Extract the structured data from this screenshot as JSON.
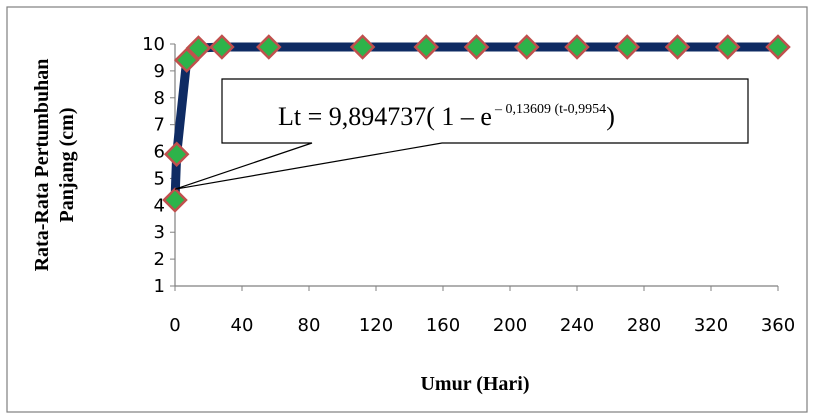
{
  "chart_data": {
    "type": "line",
    "xlabel": "Umur (Hari)",
    "ylabel_lines": [
      "Rata-Rata Pertumbuhan",
      "Panjang (cm)"
    ],
    "xlim": [
      0,
      360
    ],
    "ylim": [
      1,
      10
    ],
    "x_ticks": [
      0,
      40,
      80,
      120,
      160,
      200,
      240,
      280,
      320,
      360
    ],
    "y_ticks": [
      1,
      2,
      3,
      4,
      5,
      6,
      7,
      8,
      9,
      10
    ],
    "grid": false,
    "line_color": "#0f2b63",
    "marker_fill": "#2db34a",
    "marker_stroke": "#c0504d",
    "series": [
      {
        "x": [
          0,
          1,
          7,
          14,
          28,
          56,
          112,
          150,
          180,
          210,
          240,
          270,
          300,
          330,
          360
        ],
        "values": [
          4.2,
          5.9,
          9.4,
          9.85,
          9.89,
          9.89,
          9.89,
          9.89,
          9.89,
          9.89,
          9.89,
          9.89,
          9.89,
          9.89,
          9.89
        ]
      }
    ],
    "annotation": {
      "prefix": "Lt = 9,894737( 1 – e",
      "exponent": "– 0,13609 (t-0,9954",
      "suffix": ")"
    }
  }
}
